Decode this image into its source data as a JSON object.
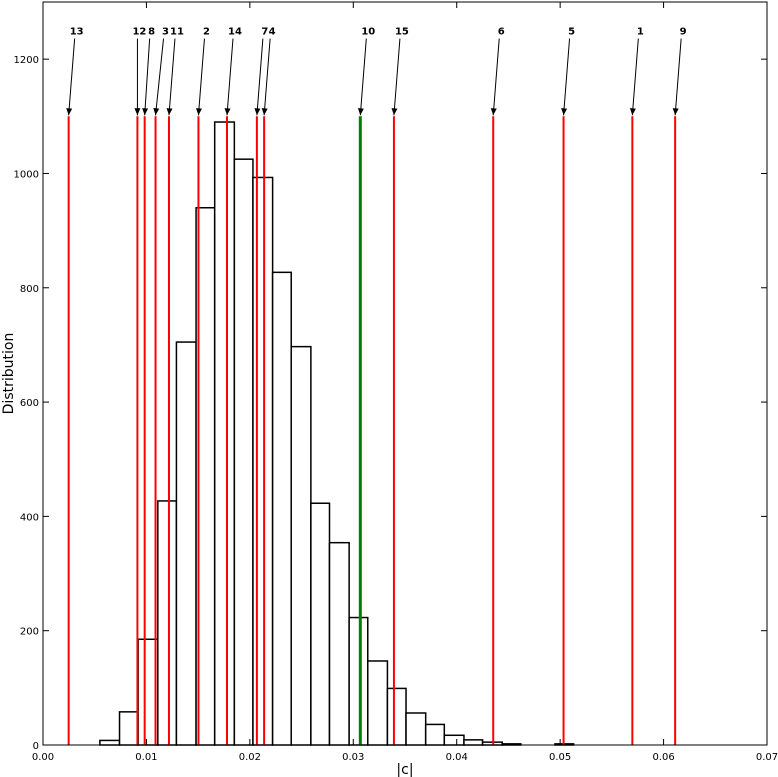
{
  "chart_data": {
    "type": "bar",
    "title": "",
    "xlabel": "|c|",
    "ylabel": "Distribution",
    "xlim": [
      0.0,
      0.07
    ],
    "ylim": [
      0,
      1300
    ],
    "grid": false,
    "legend": "none",
    "x_ticks": [
      "0.00",
      "0.01",
      "0.02",
      "0.03",
      "0.04",
      "0.05",
      "0.06",
      "0.07"
    ],
    "x_tick_values": [
      0.0,
      0.01,
      0.02,
      0.03,
      0.04,
      0.05,
      0.06,
      0.07
    ],
    "y_ticks": [
      "0",
      "200",
      "400",
      "600",
      "800",
      "1000",
      "1200"
    ],
    "y_tick_values": [
      0,
      200,
      400,
      600,
      800,
      1000,
      1200
    ],
    "histogram": {
      "bin_edges": [
        0.0055,
        0.0074,
        0.0092,
        0.0111,
        0.0129,
        0.0148,
        0.0166,
        0.0185,
        0.0203,
        0.0222,
        0.024,
        0.0259,
        0.0277,
        0.0296,
        0.0314,
        0.0333,
        0.0351,
        0.037,
        0.0388,
        0.0407,
        0.0425,
        0.0444,
        0.0462
      ],
      "counts": [
        8,
        58,
        185,
        427,
        705,
        940,
        1090,
        1025,
        993,
        827,
        697,
        423,
        354,
        223,
        147,
        99,
        56,
        36,
        17,
        9,
        5,
        2
      ],
      "stray_bin": {
        "x0": 0.0495,
        "x1": 0.0513,
        "count": 2
      },
      "edge_color": "#000000",
      "fill_color": "#ffffff"
    },
    "marker_lines": [
      {
        "label": "13",
        "x": 0.00248,
        "color": "#ff0000"
      },
      {
        "label": "12",
        "x": 0.00913,
        "color": "#ff0000"
      },
      {
        "label": "8",
        "x": 0.00983,
        "color": "#ff0000"
      },
      {
        "label": "3",
        "x": 0.01088,
        "color": "#ff0000"
      },
      {
        "label": "11",
        "x": 0.01218,
        "color": "#ff0000"
      },
      {
        "label": "2",
        "x": 0.01503,
        "color": "#ff0000"
      },
      {
        "label": "14",
        "x": 0.01779,
        "color": "#ff0000"
      },
      {
        "label": "7",
        "x": 0.02068,
        "color": "#ff0000"
      },
      {
        "label": "4",
        "x": 0.02138,
        "color": "#ff0000"
      },
      {
        "label": "10",
        "x": 0.03068,
        "color": "#008000",
        "highlight": true
      },
      {
        "label": "15",
        "x": 0.03393,
        "color": "#ff0000"
      },
      {
        "label": "6",
        "x": 0.04353,
        "color": "#ff0000"
      },
      {
        "label": "5",
        "x": 0.05033,
        "color": "#ff0000"
      },
      {
        "label": "1",
        "x": 0.05698,
        "color": "#ff0000"
      },
      {
        "label": "9",
        "x": 0.06112,
        "color": "#ff0000"
      }
    ],
    "marker_line_top": 1100,
    "annotation_label_value": 1250
  }
}
